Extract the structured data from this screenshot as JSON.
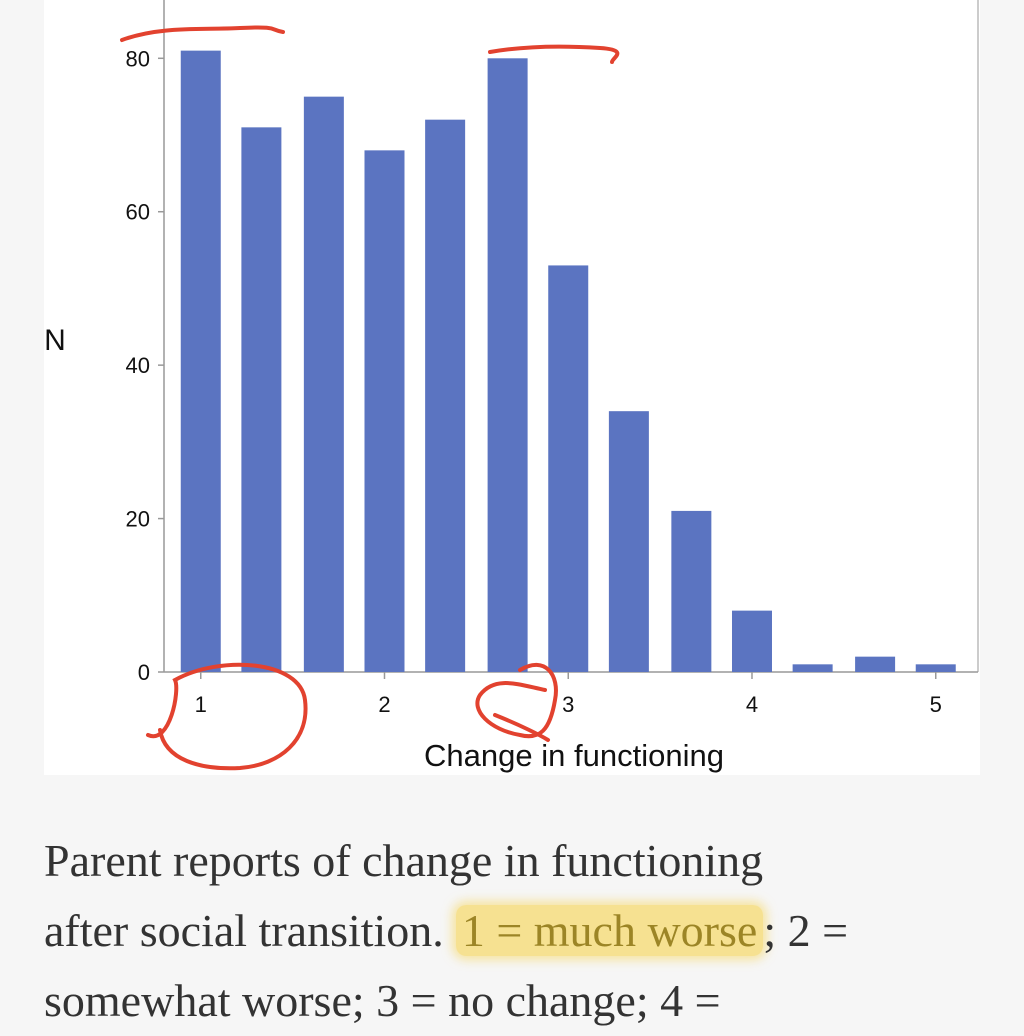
{
  "chart_data": {
    "type": "bar",
    "x": [
      1,
      1.33,
      1.67,
      2,
      2.33,
      2.67,
      3,
      3.33,
      3.67,
      4,
      4.33,
      4.67,
      5
    ],
    "values": [
      81,
      71,
      75,
      68,
      72,
      80,
      53,
      34,
      21,
      8,
      1,
      2,
      1
    ],
    "color": "#5b74c1",
    "xlabel": "Change in functioning",
    "ylabel": "N",
    "xlim": [
      0.8,
      5.23
    ],
    "xticks": [
      1,
      2,
      3,
      4,
      5
    ],
    "ylim": [
      0,
      87.6
    ],
    "yticks": [
      0,
      20,
      40,
      60,
      80
    ]
  },
  "caption": {
    "lines": [
      [
        "Parent reports of change in functioning"
      ],
      [
        "after social transition.",
        "1 = much worse",
        "; 2 ="
      ],
      [
        "somewhat worse; 3 = no change; 4 ="
      ]
    ]
  }
}
